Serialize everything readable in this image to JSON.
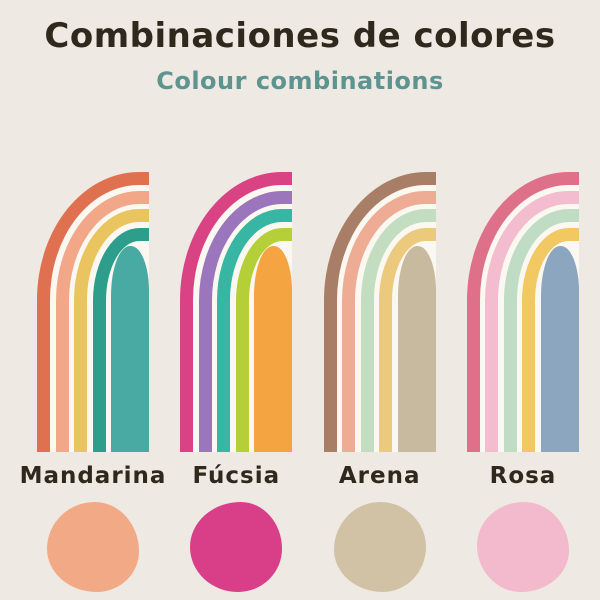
{
  "header": {
    "title": "Combinaciones de colores",
    "subtitle": "Colour combinations",
    "title_color": "#2F281C",
    "subtitle_color": "#5E948F"
  },
  "canvas": {
    "background": "#EEE9E3",
    "stripe_gap_color": "#FBF8F2",
    "label_color": "#2F281C"
  },
  "palettes": [
    {
      "name": "Mandarina",
      "arch_bands": [
        "#DF7150",
        "#F2A888",
        "#EAC45E",
        "#2D9E8B"
      ],
      "arch_center": "#49A9A3",
      "swatch": "#F2AA86"
    },
    {
      "name": "Fúcsia",
      "arch_bands": [
        "#D94384",
        "#9C76BC",
        "#36B6A3",
        "#B4CF37"
      ],
      "arch_center": "#F4A441",
      "swatch": "#D93F88"
    },
    {
      "name": "Arena",
      "arch_bands": [
        "#A87E67",
        "#EFAC94",
        "#C3DDC1",
        "#EBC97D"
      ],
      "arch_center": "#C8BA9F",
      "swatch": "#D1C2A6"
    },
    {
      "name": "Rosa",
      "arch_bands": [
        "#DE7089",
        "#F4BDCF",
        "#C1DCC4",
        "#F1C862"
      ],
      "arch_center": "#8CA6BF",
      "swatch": "#F3BACD"
    }
  ]
}
